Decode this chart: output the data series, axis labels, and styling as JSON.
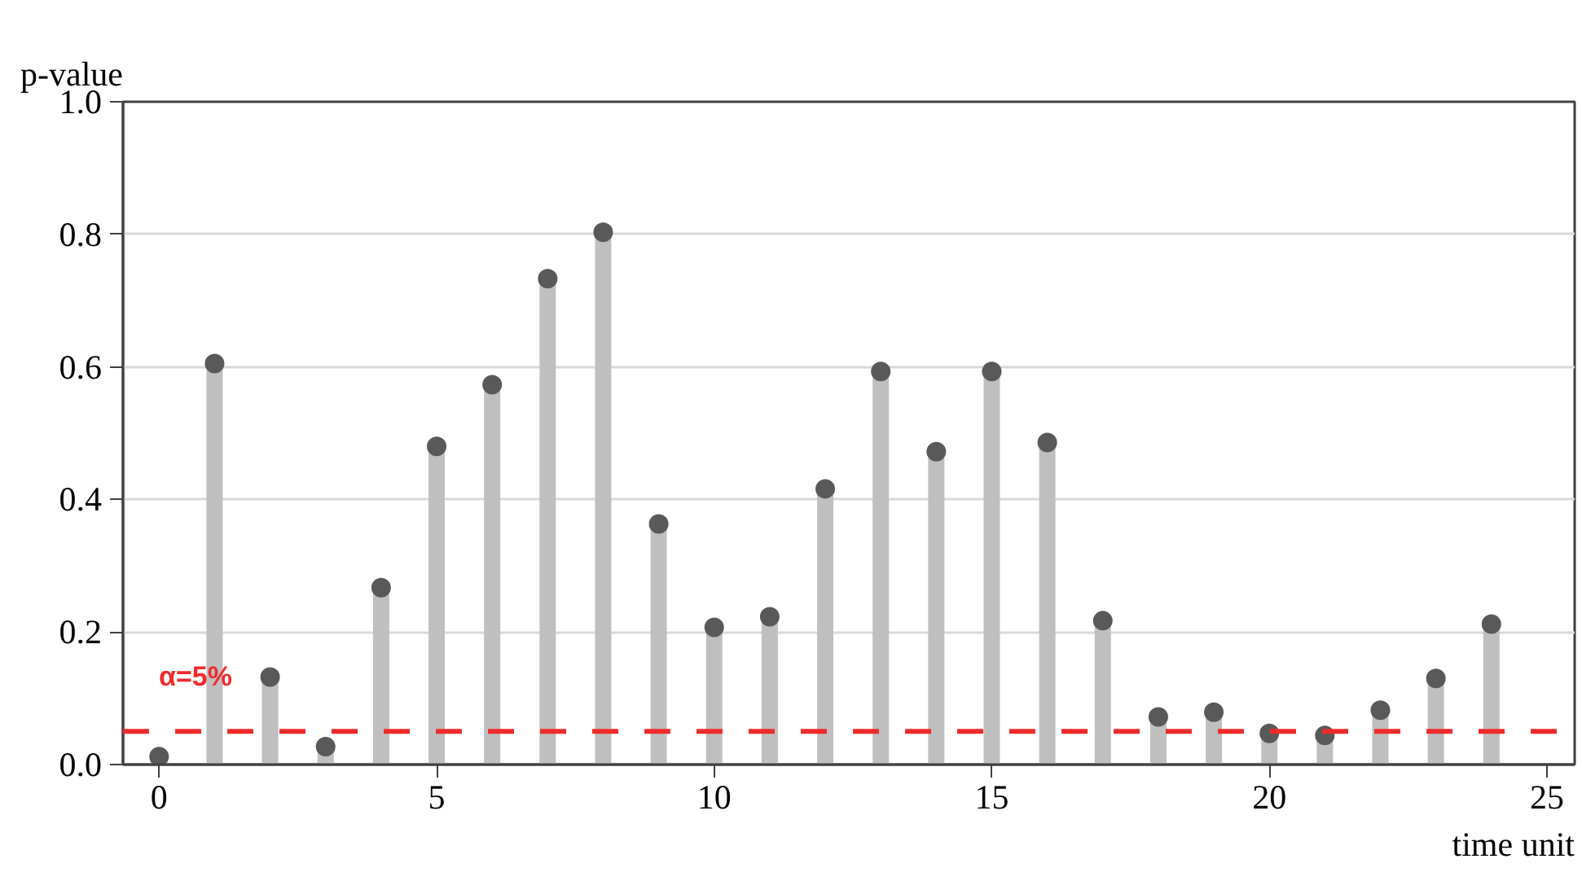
{
  "chart_data": {
    "type": "lollipop",
    "ylabel": "p-value",
    "xlabel": "time unit",
    "x": [
      0,
      1,
      2,
      3,
      4,
      5,
      6,
      7,
      8,
      9,
      10,
      11,
      12,
      13,
      14,
      15,
      16,
      17,
      18,
      19,
      20,
      21,
      22,
      23,
      24
    ],
    "series": [
      {
        "color": "#595959",
        "values": [
          0.012,
          0.605,
          0.132,
          0.027,
          0.267,
          0.48,
          0.573,
          0.733,
          0.803,
          0.363,
          0.207,
          0.223,
          0.416,
          0.593,
          0.472,
          0.593,
          0.486,
          0.217,
          0.072,
          0.079,
          0.047,
          0.044,
          0.082,
          0.13,
          0.212
        ]
      }
    ],
    "xlim": [
      -0.65,
      25.5
    ],
    "ylim": [
      0,
      1.0
    ],
    "xticks": [
      0,
      5,
      10,
      15,
      20,
      25
    ],
    "yticks": [
      {
        "value": 0,
        "label": "0.0"
      },
      {
        "value": 0.2,
        "label": "0.2"
      },
      {
        "value": 0.4,
        "label": "0.4"
      },
      {
        "value": 0.6,
        "label": "0.6"
      },
      {
        "value": 0.8,
        "label": "0.8"
      },
      {
        "value": 1.0,
        "label": "1.0"
      }
    ],
    "ref_lines": [
      {
        "axis": "y",
        "value": 0.05,
        "label": "α=5%",
        "color": "#ee2b2b",
        "line_style": "dashed"
      }
    ],
    "grid": "y",
    "marker": "circle"
  }
}
